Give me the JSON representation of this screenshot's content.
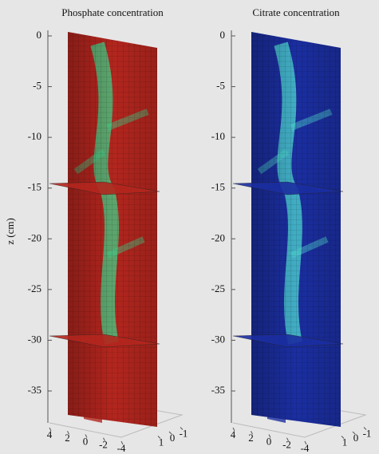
{
  "chart_data": [
    {
      "type": "slice3d",
      "title": "Phosphate concentration",
      "zlabel": "z (cm)",
      "color": "#b3261e",
      "hot": "#3fd08a",
      "zlim": [
        0,
        -35
      ],
      "zticks": [
        0,
        -5,
        -10,
        -15,
        -20,
        -25,
        -30,
        -35
      ],
      "xticks": [
        4,
        2,
        0,
        -2,
        -4
      ],
      "yticks": [
        1,
        0,
        -1
      ]
    },
    {
      "type": "slice3d",
      "title": "Citrate concentration",
      "color": "#1b2ea0",
      "hot": "#4fd8d0",
      "zlim": [
        0,
        -35
      ],
      "zticks": [
        0,
        -5,
        -10,
        -15,
        -20,
        -25,
        -30,
        -35
      ],
      "xticks": [
        4,
        2,
        0,
        -2,
        -4
      ],
      "yticks": [
        1,
        0,
        -1
      ]
    }
  ]
}
